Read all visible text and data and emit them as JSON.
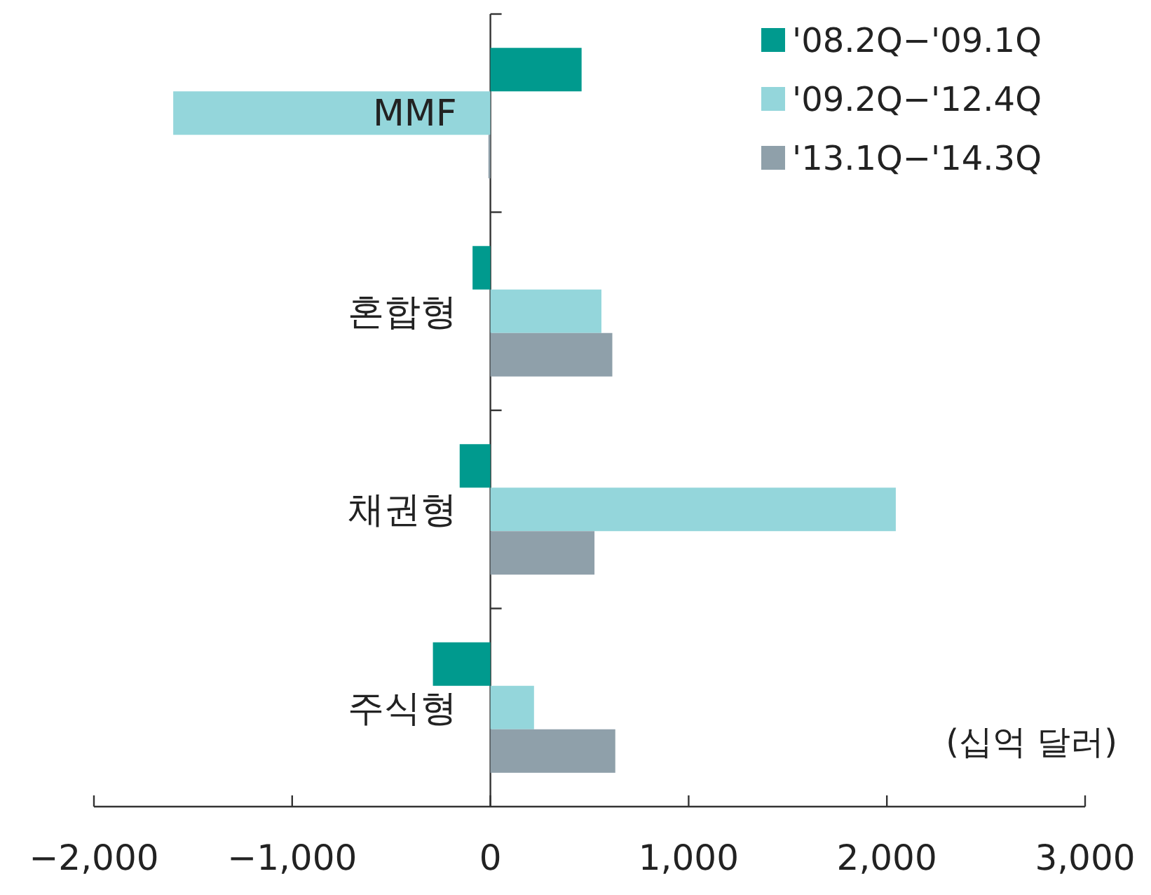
{
  "chart_data": {
    "type": "bar",
    "orientation": "horizontal",
    "categories": [
      "MMF",
      "혼합형",
      "채권형",
      "주식형"
    ],
    "series": [
      {
        "name": "'08.2Q−'09.1Q",
        "color": "#009a8e",
        "values": [
          460,
          -90,
          -155,
          -290
        ]
      },
      {
        "name": "'09.2Q−'12.4Q",
        "color": "#94d6db",
        "values": [
          -1600,
          560,
          2045,
          220
        ]
      },
      {
        "name": "'13.1Q−'14.3Q",
        "color": "#8fa0aa",
        "values": [
          -10,
          615,
          525,
          630
        ]
      }
    ],
    "xlim": [
      -2000,
      3000
    ],
    "xticks": [
      {
        "value": -2000,
        "label": "−2,000"
      },
      {
        "value": -1000,
        "label": "−1,000"
      },
      0,
      {
        "value": 1000,
        "label": "1,000"
      },
      {
        "value": 2000,
        "label": "2,000"
      },
      {
        "value": 3000,
        "label": "3,000"
      }
    ],
    "legend": "top right",
    "annotations": [
      "(십억 달러)"
    ]
  }
}
